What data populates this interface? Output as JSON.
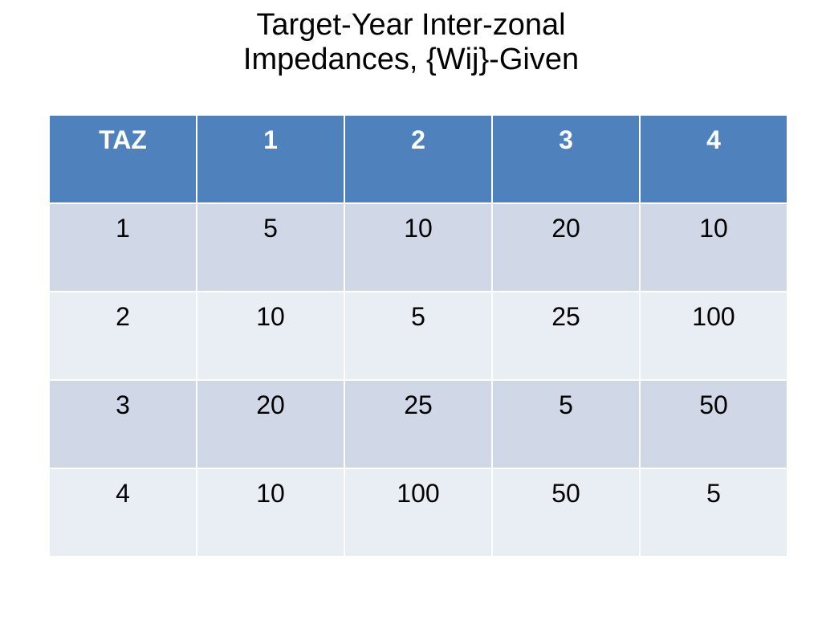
{
  "title": {
    "line1": "Target-Year Inter-zonal",
    "line2": "Impedances, {Wij}-Given"
  },
  "table": {
    "header": [
      "TAZ",
      "1",
      "2",
      "3",
      "4"
    ],
    "rows": [
      [
        "1",
        "5",
        "10",
        "20",
        "10"
      ],
      [
        "2",
        "10",
        "5",
        "25",
        "100"
      ],
      [
        "3",
        "20",
        "25",
        "5",
        "50"
      ],
      [
        "4",
        "10",
        "100",
        "50",
        "5"
      ]
    ]
  },
  "colors": {
    "header_bg": "#4f81bd",
    "row_odd_bg": "#d0d8e8",
    "row_even_bg": "#e9edf4"
  }
}
